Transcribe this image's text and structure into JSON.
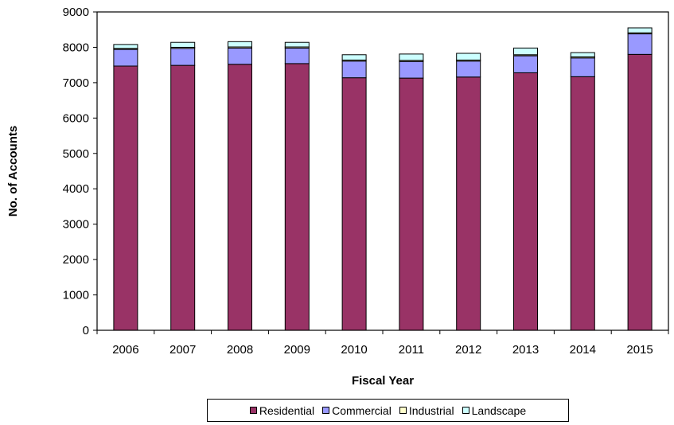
{
  "chart_data": {
    "type": "bar",
    "stacked": true,
    "categories": [
      "2006",
      "2007",
      "2008",
      "2009",
      "2010",
      "2011",
      "2012",
      "2013",
      "2014",
      "2015"
    ],
    "series": [
      {
        "name": "Residential",
        "color": "#993366",
        "values": [
          7470,
          7490,
          7520,
          7540,
          7140,
          7130,
          7160,
          7280,
          7170,
          7800
        ]
      },
      {
        "name": "Commercial",
        "color": "#9999FF",
        "values": [
          470,
          480,
          460,
          440,
          470,
          470,
          450,
          480,
          530,
          580
        ]
      },
      {
        "name": "Industrial",
        "color": "#FFFFCC",
        "values": [
          30,
          30,
          30,
          30,
          30,
          30,
          30,
          30,
          30,
          30
        ]
      },
      {
        "name": "Landscape",
        "color": "#CCFFFF",
        "values": [
          110,
          140,
          150,
          130,
          150,
          180,
          190,
          190,
          120,
          140
        ]
      }
    ],
    "xlabel": "Fiscal Year",
    "ylabel": "No. of Accounts",
    "ylim": [
      0,
      9000
    ],
    "yticks": [
      0,
      1000,
      2000,
      3000,
      4000,
      5000,
      6000,
      7000,
      8000,
      9000
    ],
    "grid": false,
    "legend_position": "bottom"
  }
}
